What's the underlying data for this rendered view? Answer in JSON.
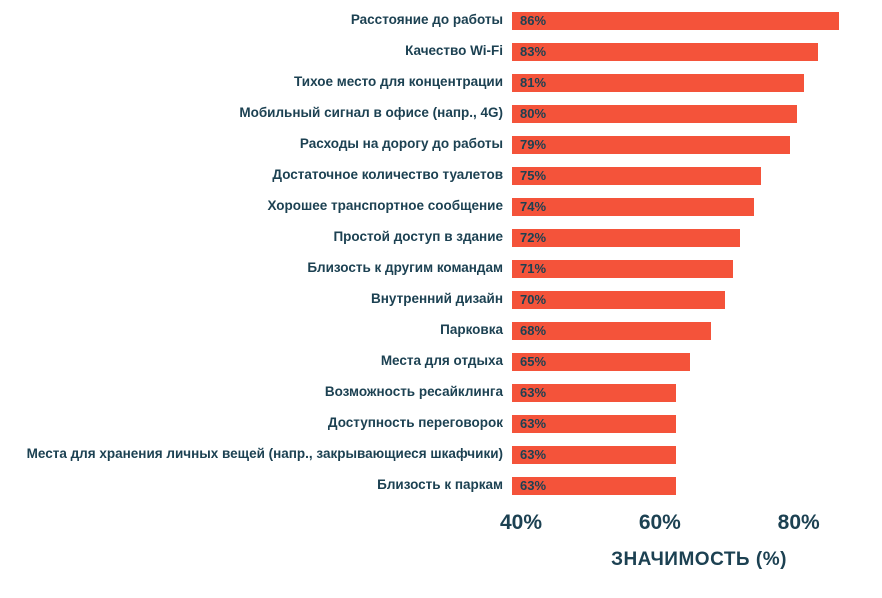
{
  "chart_data": {
    "type": "bar",
    "orientation": "horizontal",
    "title": "",
    "xlabel": "ЗНАЧИМОСТЬ (%)",
    "ylabel": "",
    "xlim": [
      40,
      92
    ],
    "xticks": [
      40,
      60,
      80
    ],
    "tick_suffix": "%",
    "value_suffix": "%",
    "grid": false,
    "legend": "none",
    "bar_color": "#F4533A",
    "text_color": "#1C4152",
    "categories": [
      "Расстояние до работы",
      "Качество Wi-Fi",
      "Тихое место для концентрации",
      "Мобильный сигнал в офисе (напр., 4G)",
      "Расходы на дорогу до работы",
      "Достаточное количество туалетов",
      "Хорошее транспортное сообщение",
      "Простой доступ в здание",
      "Близость к другим командам",
      "Внутренний дизайн",
      "Парковка",
      "Места для отдыха",
      "Возможность ресайклинга",
      "Доступность переговорок",
      "Места для хранения личных вещей (напр., закрывающиеся шкафчики)",
      "Близость к паркам"
    ],
    "values": [
      86,
      83,
      81,
      80,
      79,
      75,
      74,
      72,
      71,
      70,
      68,
      65,
      63,
      63,
      63,
      63
    ]
  }
}
